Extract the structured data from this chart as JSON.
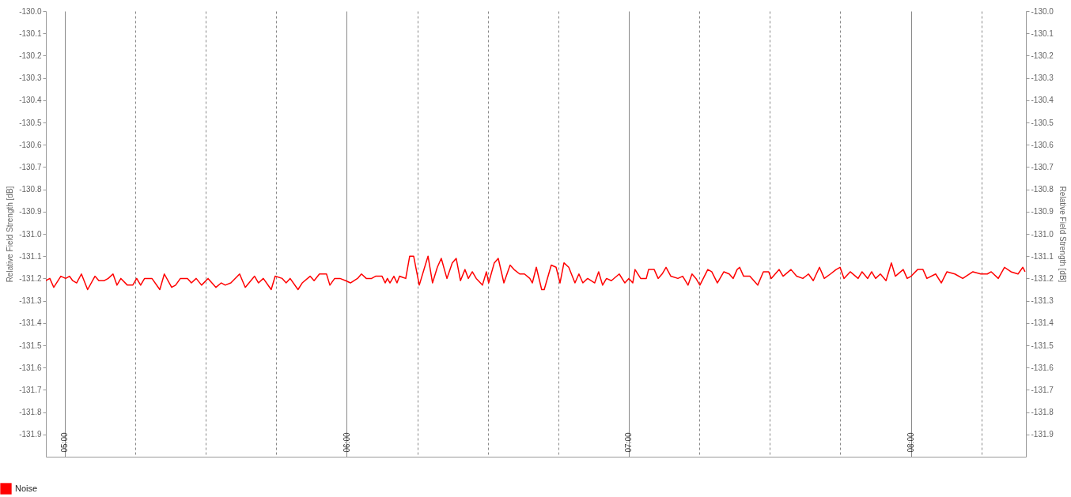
{
  "chart_data": {
    "type": "line",
    "ylabel": "Relative Field Strength [dB]",
    "y2label": "Relative Field Strength [dB]",
    "x": [
      4.933,
      4.947,
      4.961,
      4.986,
      5.003,
      5.017,
      5.028,
      5.042,
      5.059,
      5.081,
      5.107,
      5.121,
      5.14,
      5.154,
      5.171,
      5.185,
      5.199,
      5.222,
      5.241,
      5.255,
      5.269,
      5.283,
      5.309,
      5.337,
      5.353,
      5.379,
      5.393,
      5.41,
      5.435,
      5.449,
      5.466,
      5.485,
      5.508,
      5.536,
      5.555,
      5.569,
      5.589,
      5.62,
      5.64,
      5.673,
      5.687,
      5.704,
      5.732,
      5.746,
      5.771,
      5.785,
      5.799,
      5.827,
      5.842,
      5.87,
      5.884,
      5.903,
      5.928,
      5.94,
      5.957,
      5.976,
      5.996,
      6.013,
      6.038,
      6.052,
      6.069,
      6.088,
      6.102,
      6.125,
      6.136,
      6.144,
      6.153,
      6.167,
      6.178,
      6.187,
      6.209,
      6.223,
      6.237,
      6.257,
      6.276,
      6.288,
      6.304,
      6.321,
      6.335,
      6.355,
      6.374,
      6.388,
      6.403,
      6.419,
      6.431,
      6.445,
      6.459,
      6.481,
      6.495,
      6.503,
      6.523,
      6.537,
      6.557,
      6.579,
      6.593,
      6.613,
      6.63,
      6.649,
      6.658,
      6.672,
      6.691,
      6.7,
      6.725,
      6.742,
      6.756,
      6.77,
      6.787,
      6.809,
      6.823,
      6.837,
      6.854,
      6.879,
      6.893,
      6.907,
      6.921,
      6.938,
      6.966,
      6.986,
      7.0,
      7.014,
      7.022,
      7.042,
      7.062,
      7.07,
      7.09,
      7.104,
      7.118,
      7.132,
      7.149,
      7.174,
      7.191,
      7.21,
      7.224,
      7.238,
      7.252,
      7.28,
      7.294,
      7.314,
      7.337,
      7.356,
      7.37,
      7.384,
      7.393,
      7.407,
      7.429,
      7.457,
      7.477,
      7.496,
      7.505,
      7.533,
      7.547,
      7.575,
      7.595,
      7.617,
      7.637,
      7.654,
      7.676,
      7.693,
      7.715,
      7.735,
      7.749,
      7.763,
      7.785,
      7.813,
      7.827,
      7.847,
      7.861,
      7.875,
      7.892,
      7.912,
      7.931,
      7.945,
      7.973,
      7.987,
      8.001,
      8.024,
      8.043,
      8.057,
      8.088,
      8.108,
      8.128,
      8.156,
      8.184,
      8.22,
      8.248,
      8.271,
      8.285,
      8.31,
      8.332,
      8.355,
      8.38,
      8.397,
      8.405
    ],
    "series": [
      {
        "name": "Noise",
        "color": "#ff0000",
        "values": [
          -131.21,
          -131.2,
          -131.24,
          -131.19,
          -131.2,
          -131.19,
          -131.21,
          -131.22,
          -131.18,
          -131.25,
          -131.19,
          -131.21,
          -131.21,
          -131.2,
          -131.18,
          -131.23,
          -131.2,
          -131.23,
          -131.23,
          -131.2,
          -131.23,
          -131.2,
          -131.2,
          -131.25,
          -131.18,
          -131.24,
          -131.23,
          -131.2,
          -131.2,
          -131.22,
          -131.2,
          -131.23,
          -131.2,
          -131.24,
          -131.22,
          -131.23,
          -131.22,
          -131.18,
          -131.24,
          -131.19,
          -131.22,
          -131.2,
          -131.25,
          -131.19,
          -131.2,
          -131.22,
          -131.2,
          -131.25,
          -131.22,
          -131.19,
          -131.21,
          -131.18,
          -131.18,
          -131.23,
          -131.2,
          -131.2,
          -131.21,
          -131.22,
          -131.2,
          -131.18,
          -131.2,
          -131.2,
          -131.19,
          -131.19,
          -131.22,
          -131.2,
          -131.22,
          -131.19,
          -131.22,
          -131.19,
          -131.2,
          -131.1,
          -131.1,
          -131.23,
          -131.15,
          -131.1,
          -131.22,
          -131.15,
          -131.11,
          -131.2,
          -131.13,
          -131.11,
          -131.21,
          -131.16,
          -131.2,
          -131.17,
          -131.2,
          -131.23,
          -131.17,
          -131.22,
          -131.13,
          -131.11,
          -131.22,
          -131.14,
          -131.16,
          -131.18,
          -131.18,
          -131.2,
          -131.22,
          -131.15,
          -131.25,
          -131.25,
          -131.14,
          -131.15,
          -131.22,
          -131.13,
          -131.15,
          -131.22,
          -131.18,
          -131.22,
          -131.2,
          -131.22,
          -131.17,
          -131.23,
          -131.2,
          -131.21,
          -131.18,
          -131.22,
          -131.2,
          -131.22,
          -131.16,
          -131.2,
          -131.2,
          -131.16,
          -131.16,
          -131.2,
          -131.18,
          -131.15,
          -131.19,
          -131.2,
          -131.19,
          -131.23,
          -131.18,
          -131.2,
          -131.23,
          -131.16,
          -131.17,
          -131.22,
          -131.17,
          -131.18,
          -131.2,
          -131.16,
          -131.15,
          -131.19,
          -131.19,
          -131.23,
          -131.17,
          -131.17,
          -131.2,
          -131.16,
          -131.19,
          -131.16,
          -131.19,
          -131.2,
          -131.18,
          -131.21,
          -131.15,
          -131.2,
          -131.18,
          -131.16,
          -131.15,
          -131.2,
          -131.17,
          -131.2,
          -131.17,
          -131.2,
          -131.17,
          -131.2,
          -131.18,
          -131.21,
          -131.13,
          -131.19,
          -131.16,
          -131.2,
          -131.19,
          -131.16,
          -131.16,
          -131.2,
          -131.18,
          -131.22,
          -131.17,
          -131.18,
          -131.2,
          -131.17,
          -131.18,
          -131.18,
          -131.17,
          -131.2,
          -131.15,
          -131.17,
          -131.18,
          -131.15,
          -131.17
        ]
      }
    ],
    "xlim": [
      4.933,
      8.408
    ],
    "xticks": [
      {
        "value": 5,
        "label": "05:00"
      },
      {
        "value": 5.25,
        "label": null
      },
      {
        "value": 5.5,
        "label": null
      },
      {
        "value": 5.75,
        "label": null
      },
      {
        "value": 6,
        "label": "06:00"
      },
      {
        "value": 6.25,
        "label": null
      },
      {
        "value": 6.5,
        "label": null
      },
      {
        "value": 6.75,
        "label": null
      },
      {
        "value": 7,
        "label": "07:00"
      },
      {
        "value": 7.25,
        "label": null
      },
      {
        "value": 7.5,
        "label": null
      },
      {
        "value": 7.75,
        "label": null
      },
      {
        "value": 8,
        "label": "08:00"
      },
      {
        "value": 8.25,
        "label": null
      }
    ],
    "ylim": [
      -132.0,
      -130.0
    ],
    "yticks": [
      {
        "value": -130.0,
        "label": "-130.0"
      },
      {
        "value": -130.1,
        "label": "-130.1"
      },
      {
        "value": -130.2,
        "label": "-130.2"
      },
      {
        "value": -130.3,
        "label": "-130.3"
      },
      {
        "value": -130.4,
        "label": "-130.4"
      },
      {
        "value": -130.5,
        "label": "-130.5"
      },
      {
        "value": -130.6,
        "label": "-130.6"
      },
      {
        "value": -130.7,
        "label": "-130.7"
      },
      {
        "value": -130.8,
        "label": "-130.8"
      },
      {
        "value": -130.9,
        "label": "-130.9"
      },
      {
        "value": -131.0,
        "label": "-131.0"
      },
      {
        "value": -131.1,
        "label": "-131.1"
      },
      {
        "value": -131.2,
        "label": "-131.2"
      },
      {
        "value": -131.3,
        "label": "-131.3"
      },
      {
        "value": -131.4,
        "label": "-131.4"
      },
      {
        "value": -131.5,
        "label": "-131.5"
      },
      {
        "value": -131.6,
        "label": "-131.6"
      },
      {
        "value": -131.7,
        "label": "-131.7"
      },
      {
        "value": -131.8,
        "label": "-131.8"
      },
      {
        "value": -131.9,
        "label": "-131.9"
      }
    ],
    "y2lim": [
      -132.0,
      -130.0
    ],
    "y2ticks": [
      {
        "value": -130.0,
        "label": "-130.0"
      },
      {
        "value": -130.1,
        "label": "-130.1"
      },
      {
        "value": -130.2,
        "label": "-130.2"
      },
      {
        "value": -130.3,
        "label": "-130.3"
      },
      {
        "value": -130.4,
        "label": "-130.4"
      },
      {
        "value": -130.5,
        "label": "-130.5"
      },
      {
        "value": -130.6,
        "label": "-130.6"
      },
      {
        "value": -130.7,
        "label": "-130.7"
      },
      {
        "value": -130.8,
        "label": "-130.8"
      },
      {
        "value": -130.9,
        "label": "-130.9"
      },
      {
        "value": -131.0,
        "label": "-131.0"
      },
      {
        "value": -131.1,
        "label": "-131.1"
      },
      {
        "value": -131.2,
        "label": "-131.2"
      },
      {
        "value": -131.3,
        "label": "-131.3"
      },
      {
        "value": -131.4,
        "label": "-131.4"
      },
      {
        "value": -131.5,
        "label": "-131.5"
      },
      {
        "value": -131.6,
        "label": "-131.6"
      },
      {
        "value": -131.7,
        "label": "-131.7"
      },
      {
        "value": -131.8,
        "label": "-131.8"
      },
      {
        "value": -131.9,
        "label": "-131.9"
      }
    ],
    "grid": "x",
    "legend": "bottom left"
  }
}
